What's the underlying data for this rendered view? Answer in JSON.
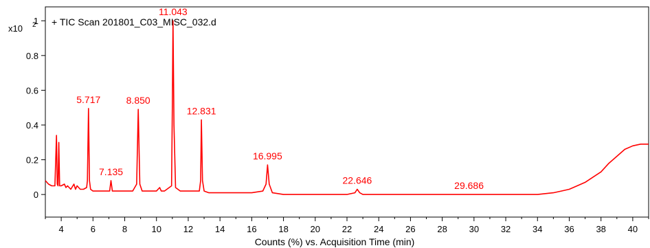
{
  "chart_data": {
    "type": "line",
    "title": "+ TIC Scan 201801_C03_MISC_032.d",
    "xlabel": "Counts (%) vs. Acquisition Time (min)",
    "ylabel": "",
    "y_multiplier": {
      "base": "x10",
      "exponent": "2"
    },
    "xlim": [
      3.0,
      41.0
    ],
    "ylim": [
      -0.13,
      1.08
    ],
    "x_ticks": [
      4,
      6,
      8,
      10,
      12,
      14,
      16,
      18,
      20,
      22,
      24,
      26,
      28,
      30,
      32,
      34,
      36,
      38,
      40
    ],
    "y_ticks": [
      {
        "value": 0,
        "label": "0"
      },
      {
        "value": 0.2,
        "label": "0.2"
      },
      {
        "value": 0.4,
        "label": "0.4"
      },
      {
        "value": 0.6,
        "label": "0.6"
      },
      {
        "value": 0.8,
        "label": "0.8"
      },
      {
        "value": 1.0,
        "label": "1"
      }
    ],
    "grid": false,
    "line_color": "#ff0000",
    "peak_labels": [
      {
        "label": "5.717",
        "x": 5.717,
        "y": 0.495
      },
      {
        "label": "7.135",
        "x": 7.135,
        "y": 0.08
      },
      {
        "label": "8.850",
        "x": 8.85,
        "y": 0.49
      },
      {
        "label": "11.043",
        "x": 11.043,
        "y": 1.0
      },
      {
        "label": "12.831",
        "x": 12.831,
        "y": 0.43
      },
      {
        "label": "16.995",
        "x": 16.995,
        "y": 0.17
      },
      {
        "label": "22.646",
        "x": 22.646,
        "y": 0.03
      },
      {
        "label": "29.686",
        "x": 29.686,
        "y": 0.0
      }
    ],
    "series": [
      {
        "name": "",
        "x": [
          3.0,
          3.2,
          3.4,
          3.6,
          3.7,
          3.75,
          3.8,
          3.85,
          3.9,
          3.95,
          4.0,
          4.2,
          4.3,
          4.4,
          4.6,
          4.8,
          4.9,
          5.0,
          5.2,
          5.4,
          5.6,
          5.65,
          5.717,
          5.78,
          5.85,
          6.0,
          6.5,
          7.05,
          7.135,
          7.22,
          7.5,
          8.0,
          8.5,
          8.75,
          8.85,
          8.95,
          9.1,
          9.5,
          10.0,
          10.2,
          10.3,
          10.5,
          10.95,
          11.0,
          11.043,
          11.1,
          11.2,
          11.5,
          12.0,
          12.7,
          12.78,
          12.831,
          12.9,
          13.0,
          13.3,
          14.0,
          15.0,
          16.0,
          16.7,
          16.9,
          16.995,
          17.1,
          17.3,
          18.0,
          20.0,
          22.0,
          22.5,
          22.646,
          22.8,
          23.0,
          25.0,
          27.0,
          29.5,
          29.686,
          30.0,
          32.0,
          33.0,
          34.0,
          35.0,
          35.5,
          36.0,
          36.5,
          37.0,
          37.5,
          38.0,
          38.5,
          39.0,
          39.5,
          40.0,
          40.5,
          41.0
        ],
        "y": [
          0.08,
          0.06,
          0.05,
          0.05,
          0.34,
          0.06,
          0.05,
          0.3,
          0.05,
          0.05,
          0.05,
          0.06,
          0.04,
          0.05,
          0.03,
          0.06,
          0.03,
          0.05,
          0.03,
          0.03,
          0.04,
          0.08,
          0.495,
          0.08,
          0.03,
          0.02,
          0.02,
          0.02,
          0.08,
          0.02,
          0.02,
          0.02,
          0.02,
          0.06,
          0.49,
          0.06,
          0.02,
          0.02,
          0.02,
          0.04,
          0.02,
          0.02,
          0.05,
          0.5,
          1.0,
          0.4,
          0.04,
          0.02,
          0.02,
          0.02,
          0.08,
          0.43,
          0.08,
          0.02,
          0.01,
          0.01,
          0.01,
          0.01,
          0.02,
          0.06,
          0.17,
          0.06,
          0.01,
          0.0,
          0.0,
          0.0,
          0.01,
          0.03,
          0.01,
          0.0,
          0.0,
          0.0,
          0.0,
          0.0,
          0.0,
          0.0,
          0.0,
          0.0,
          0.01,
          0.02,
          0.03,
          0.05,
          0.07,
          0.1,
          0.13,
          0.18,
          0.22,
          0.26,
          0.28,
          0.29,
          0.29
        ]
      }
    ]
  }
}
